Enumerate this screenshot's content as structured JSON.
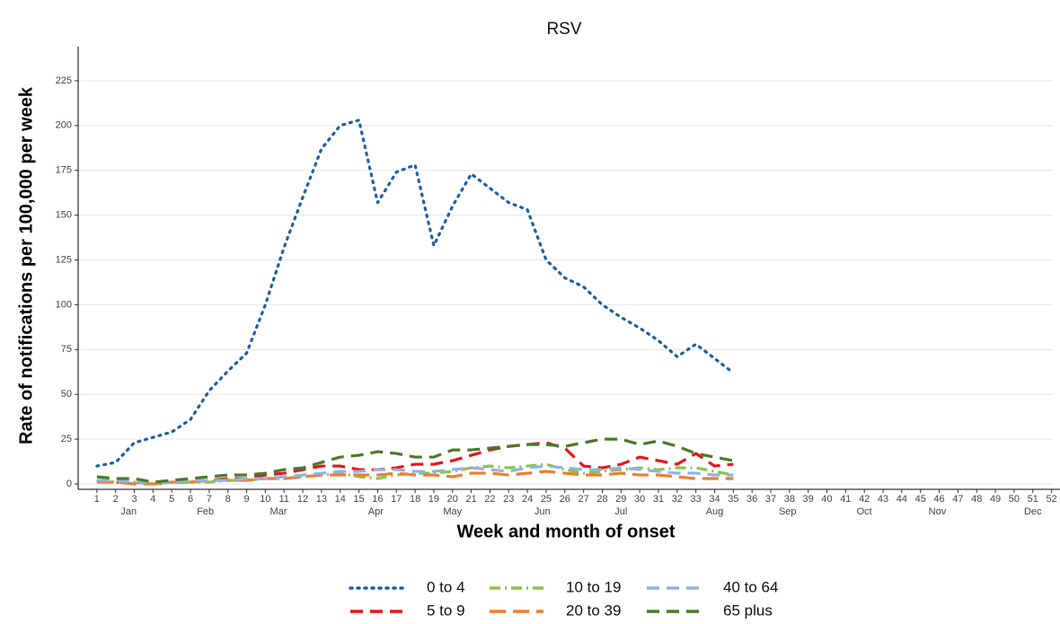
{
  "chart_data": {
    "type": "line",
    "title": "RSV",
    "x_label": "Week and month of onset",
    "y_label": "Rate of notifications per 100,000 per week",
    "x": [
      1,
      2,
      3,
      4,
      5,
      6,
      7,
      8,
      9,
      10,
      11,
      12,
      13,
      14,
      15,
      16,
      17,
      18,
      19,
      20,
      21,
      22,
      23,
      24,
      25,
      26,
      27,
      28,
      29,
      30,
      31,
      32,
      33,
      34,
      35
    ],
    "xlim": [
      0,
      52.5
    ],
    "xticks": [
      1,
      2,
      3,
      4,
      5,
      6,
      7,
      8,
      9,
      10,
      11,
      12,
      13,
      14,
      15,
      16,
      17,
      18,
      19,
      20,
      21,
      22,
      23,
      24,
      25,
      26,
      27,
      28,
      29,
      30,
      31,
      32,
      33,
      34,
      35,
      36,
      37,
      38,
      39,
      40,
      41,
      42,
      43,
      44,
      45,
      46,
      47,
      48,
      49,
      50,
      51,
      52
    ],
    "month_ticks": [
      {
        "value": 2.7,
        "label": "Jan"
      },
      {
        "value": 6.8,
        "label": "Feb"
      },
      {
        "value": 10.7,
        "label": "Mar"
      },
      {
        "value": 15.9,
        "label": "Apr"
      },
      {
        "value": 20,
        "label": "May"
      },
      {
        "value": 24.8,
        "label": "Jun"
      },
      {
        "value": 29,
        "label": "Jul"
      },
      {
        "value": 34,
        "label": "Aug"
      },
      {
        "value": 37.9,
        "label": "Sep"
      },
      {
        "value": 42,
        "label": "Oct"
      },
      {
        "value": 45.9,
        "label": "Nov"
      },
      {
        "value": 51,
        "label": "Dec"
      }
    ],
    "ylim": [
      -3,
      244
    ],
    "yticks": [
      0,
      25,
      50,
      75,
      100,
      125,
      150,
      175,
      200,
      225
    ],
    "grid": true,
    "legend": "bottom",
    "series": [
      {
        "name": "0 to 4",
        "color": "#1f5fa0",
        "dash": "dotted",
        "values": [
          10,
          12,
          23,
          26,
          29,
          36,
          52,
          63,
          73,
          100,
          132,
          160,
          187,
          200,
          203,
          157,
          174,
          178,
          133,
          155,
          173,
          165,
          157,
          153,
          125,
          115,
          110,
          100,
          93,
          87,
          80,
          71,
          78,
          70,
          62
        ]
      },
      {
        "name": "5 to 9",
        "color": "#e8141a",
        "dash": "dashed",
        "values": [
          2,
          1,
          1,
          0,
          1,
          1,
          2,
          3,
          3,
          5,
          6,
          8,
          10,
          10,
          8,
          8,
          9,
          11,
          11,
          13,
          16,
          19,
          21,
          22,
          23,
          20,
          10,
          9,
          11,
          15,
          13,
          11,
          17,
          10,
          11
        ]
      },
      {
        "name": "10 to 19",
        "color": "#8bc34a",
        "dash": "dotdash",
        "values": [
          2,
          1,
          1,
          0,
          1,
          1,
          1,
          2,
          2,
          3,
          3,
          4,
          5,
          6,
          4,
          3,
          5,
          6,
          6,
          7,
          9,
          10,
          9,
          10,
          11,
          8,
          6,
          7,
          8,
          9,
          8,
          9,
          9,
          7,
          5
        ]
      },
      {
        "name": "20 to 39",
        "color": "#ee7d31",
        "dash": "longdash",
        "values": [
          1,
          1,
          0,
          0,
          1,
          1,
          2,
          2,
          2,
          3,
          3,
          4,
          5,
          5,
          5,
          5,
          6,
          5,
          5,
          4,
          6,
          6,
          5,
          6,
          7,
          6,
          5,
          5,
          6,
          5,
          5,
          4,
          3,
          3,
          3
        ]
      },
      {
        "name": "40 to 64",
        "color": "#8eb4e3",
        "dash": "dashed",
        "values": [
          2,
          2,
          1,
          1,
          1,
          2,
          2,
          2,
          3,
          3,
          4,
          5,
          6,
          7,
          7,
          8,
          8,
          7,
          7,
          8,
          9,
          8,
          7,
          9,
          10,
          9,
          8,
          8,
          9,
          8,
          7,
          6,
          6,
          5,
          5
        ]
      },
      {
        "name": "65 plus",
        "color": "#4a7a2a",
        "dash": "dashed",
        "values": [
          4,
          3,
          3,
          1,
          2,
          3,
          4,
          5,
          5,
          6,
          8,
          9,
          12,
          15,
          16,
          18,
          17,
          15,
          15,
          19,
          19,
          20,
          21,
          22,
          22,
          21,
          23,
          25,
          25,
          22,
          24,
          21,
          17,
          15,
          13
        ]
      }
    ]
  }
}
